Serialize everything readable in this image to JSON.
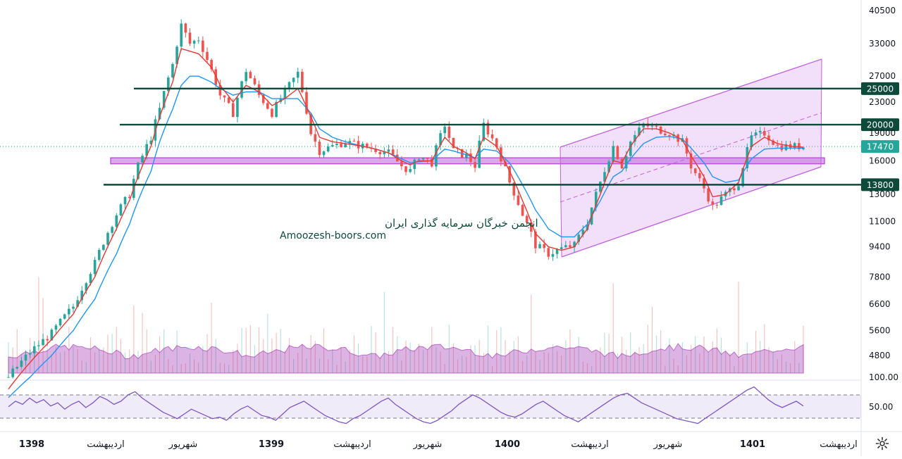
{
  "chart_data": {
    "type": "line",
    "chart_kind": "candlestick",
    "y_scale": "log",
    "ylim": [
      3900,
      43000
    ],
    "y_ticks": [
      "40500",
      "33000",
      "27000",
      "23000",
      "19000",
      "16000",
      "13000",
      "11000",
      "9400",
      "7800",
      "6600",
      "5600",
      "4800"
    ],
    "y_tick_values": [
      40500,
      33000,
      27000,
      23000,
      19000,
      16000,
      13000,
      11000,
      9400,
      7800,
      6600,
      5600,
      4800
    ],
    "x_labels": [
      {
        "text": "1398",
        "bold": true
      },
      {
        "text": "اردیبهشت",
        "bold": false
      },
      {
        "text": "شهریور",
        "bold": false
      },
      {
        "text": "1399",
        "bold": true
      },
      {
        "text": "اردیبهشت",
        "bold": false
      },
      {
        "text": "شهریور",
        "bold": false
      },
      {
        "text": "1400",
        "bold": true
      },
      {
        "text": "اردیبهشت",
        "bold": false
      },
      {
        "text": "شهریور",
        "bold": false
      },
      {
        "text": "1401",
        "bold": true
      },
      {
        "text": "اردیبهشت",
        "bold": false
      }
    ],
    "last_price": {
      "value": 17470,
      "label": "17470",
      "color": "#26a69a"
    },
    "levels": [
      {
        "value": 25000,
        "label": "25000"
      },
      {
        "value": 20000,
        "label": "20000"
      },
      {
        "value": 13800,
        "label": "13800"
      }
    ],
    "support_zone": {
      "from": 15700,
      "to": 16300
    },
    "price_path": [
      [
        0,
        4200
      ],
      [
        5,
        4900
      ],
      [
        10,
        5500
      ],
      [
        15,
        6500
      ],
      [
        20,
        8500
      ],
      [
        25,
        11500
      ],
      [
        28,
        13000
      ],
      [
        30,
        15500
      ],
      [
        33,
        18500
      ],
      [
        35,
        22000
      ],
      [
        38,
        29000
      ],
      [
        40,
        37000
      ],
      [
        42,
        33000
      ],
      [
        44,
        34000
      ],
      [
        47,
        28000
      ],
      [
        49,
        24000
      ],
      [
        52,
        21500
      ],
      [
        55,
        28000
      ],
      [
        58,
        24000
      ],
      [
        61,
        21500
      ],
      [
        64,
        24500
      ],
      [
        67,
        27500
      ],
      [
        70,
        19000
      ],
      [
        72,
        17000
      ],
      [
        75,
        17500
      ],
      [
        78,
        18000
      ],
      [
        82,
        17500
      ],
      [
        85,
        17200
      ],
      [
        88,
        16800
      ],
      [
        91,
        15500
      ],
      [
        93,
        15000
      ],
      [
        95,
        16500
      ],
      [
        98,
        15800
      ],
      [
        101,
        20000
      ],
      [
        103,
        17000
      ],
      [
        106,
        16500
      ],
      [
        108,
        15500
      ],
      [
        110,
        20000
      ],
      [
        113,
        17500
      ],
      [
        116,
        14000
      ],
      [
        119,
        11500
      ],
      [
        122,
        9500
      ],
      [
        125,
        9000
      ],
      [
        128,
        9300
      ],
      [
        131,
        9500
      ],
      [
        134,
        11000
      ],
      [
        137,
        14000
      ],
      [
        140,
        17500
      ],
      [
        142,
        15500
      ],
      [
        144,
        18000
      ],
      [
        147,
        20000
      ],
      [
        150,
        19500
      ],
      [
        153,
        19000
      ],
      [
        156,
        18000
      ],
      [
        158,
        15500
      ],
      [
        161,
        13500
      ],
      [
        163,
        12000
      ],
      [
        166,
        13000
      ],
      [
        169,
        14000
      ],
      [
        172,
        18500
      ],
      [
        175,
        19000
      ],
      [
        178,
        17500
      ],
      [
        181,
        17500
      ],
      [
        184,
        17470
      ]
    ],
    "ema_fast": [
      [
        0,
        3900
      ],
      [
        5,
        4600
      ],
      [
        10,
        5300
      ],
      [
        15,
        6200
      ],
      [
        20,
        7800
      ],
      [
        25,
        10500
      ],
      [
        28,
        12500
      ],
      [
        30,
        14500
      ],
      [
        33,
        17500
      ],
      [
        35,
        21000
      ],
      [
        38,
        26000
      ],
      [
        40,
        32000
      ],
      [
        42,
        31500
      ],
      [
        44,
        31000
      ],
      [
        47,
        28500
      ],
      [
        49,
        25500
      ],
      [
        52,
        23000
      ],
      [
        55,
        25500
      ],
      [
        58,
        24500
      ],
      [
        61,
        22500
      ],
      [
        64,
        23500
      ],
      [
        67,
        25000
      ],
      [
        70,
        21000
      ],
      [
        72,
        18500
      ],
      [
        75,
        18000
      ],
      [
        78,
        17800
      ],
      [
        82,
        17500
      ],
      [
        85,
        17200
      ],
      [
        88,
        16800
      ],
      [
        91,
        16000
      ],
      [
        93,
        15600
      ],
      [
        95,
        16000
      ],
      [
        98,
        16000
      ],
      [
        101,
        18500
      ],
      [
        103,
        17500
      ],
      [
        106,
        16800
      ],
      [
        108,
        16200
      ],
      [
        110,
        18500
      ],
      [
        113,
        17500
      ],
      [
        116,
        15000
      ],
      [
        119,
        12500
      ],
      [
        122,
        10200
      ],
      [
        125,
        9400
      ],
      [
        128,
        9200
      ],
      [
        131,
        9400
      ],
      [
        134,
        10500
      ],
      [
        137,
        13000
      ],
      [
        140,
        16000
      ],
      [
        142,
        15800
      ],
      [
        144,
        17500
      ],
      [
        147,
        19500
      ],
      [
        150,
        19500
      ],
      [
        153,
        19000
      ],
      [
        156,
        18200
      ],
      [
        158,
        16500
      ],
      [
        161,
        14500
      ],
      [
        163,
        12800
      ],
      [
        166,
        13000
      ],
      [
        169,
        14000
      ],
      [
        172,
        17500
      ],
      [
        175,
        18500
      ],
      [
        178,
        17800
      ],
      [
        181,
        17500
      ],
      [
        184,
        17400
      ]
    ],
    "ema_slow": [
      [
        0,
        3700
      ],
      [
        5,
        4200
      ],
      [
        10,
        4800
      ],
      [
        15,
        5600
      ],
      [
        20,
        6800
      ],
      [
        25,
        9000
      ],
      [
        28,
        10800
      ],
      [
        30,
        12500
      ],
      [
        33,
        15000
      ],
      [
        35,
        18000
      ],
      [
        38,
        22000
      ],
      [
        40,
        25500
      ],
      [
        42,
        27000
      ],
      [
        44,
        27000
      ],
      [
        47,
        26000
      ],
      [
        49,
        25000
      ],
      [
        52,
        24000
      ],
      [
        55,
        24500
      ],
      [
        58,
        24500
      ],
      [
        61,
        23500
      ],
      [
        64,
        23500
      ],
      [
        67,
        23500
      ],
      [
        70,
        21500
      ],
      [
        72,
        19500
      ],
      [
        75,
        18500
      ],
      [
        78,
        18000
      ],
      [
        82,
        17500
      ],
      [
        85,
        17200
      ],
      [
        88,
        16800
      ],
      [
        91,
        16200
      ],
      [
        93,
        15800
      ],
      [
        95,
        15900
      ],
      [
        98,
        16000
      ],
      [
        101,
        17200
      ],
      [
        103,
        17000
      ],
      [
        106,
        16600
      ],
      [
        108,
        16300
      ],
      [
        110,
        17200
      ],
      [
        113,
        17000
      ],
      [
        116,
        15800
      ],
      [
        119,
        13800
      ],
      [
        122,
        11800
      ],
      [
        125,
        10500
      ],
      [
        128,
        10000
      ],
      [
        131,
        10000
      ],
      [
        134,
        10800
      ],
      [
        137,
        12500
      ],
      [
        140,
        14500
      ],
      [
        142,
        15000
      ],
      [
        144,
        16200
      ],
      [
        147,
        17800
      ],
      [
        150,
        18500
      ],
      [
        153,
        18600
      ],
      [
        156,
        18300
      ],
      [
        158,
        17300
      ],
      [
        161,
        15800
      ],
      [
        163,
        14500
      ],
      [
        166,
        14000
      ],
      [
        169,
        14200
      ],
      [
        172,
        16200
      ],
      [
        175,
        17200
      ],
      [
        178,
        17300
      ],
      [
        181,
        17300
      ],
      [
        184,
        17300
      ]
    ],
    "channel": {
      "lower": [
        [
          797,
          365
        ],
        [
          1165,
          237
        ]
      ],
      "upper": [
        [
          795,
          209
        ],
        [
          1166,
          84
        ]
      ],
      "mid": [
        [
          795,
          287
        ],
        [
          1166,
          160
        ]
      ]
    },
    "rsi": {
      "levels": [
        "100.00",
        "50.00"
      ],
      "values": [
        55,
        62,
        58,
        66,
        60,
        64,
        56,
        60,
        52,
        58,
        62,
        54,
        60,
        68,
        64,
        58,
        62,
        70,
        74,
        66,
        60,
        54,
        48,
        44,
        40,
        46,
        52,
        48,
        44,
        40,
        42,
        38,
        46,
        52,
        56,
        50,
        44,
        42,
        38,
        46,
        54,
        58,
        62,
        56,
        50,
        44,
        40,
        36,
        34,
        40,
        44,
        50,
        56,
        62,
        66,
        58,
        52,
        46,
        40,
        36,
        34,
        38,
        44,
        50,
        58,
        64,
        70,
        66,
        60,
        54,
        48,
        44,
        42,
        46,
        52,
        58,
        62,
        56,
        50,
        44,
        40,
        36,
        42,
        48,
        54,
        60,
        66,
        70,
        72,
        66,
        60,
        56,
        52,
        48,
        44,
        40,
        38,
        36,
        34,
        40,
        46,
        52,
        58,
        64,
        70,
        76,
        80,
        72,
        64,
        58,
        54,
        58,
        62,
        56
      ]
    },
    "colors": {
      "up": "#26a69a",
      "down": "#ef5350",
      "ema_fast": "#e53935",
      "ema_slow": "#2196f3",
      "levels": "#0e4a3a",
      "zone": "#b040d0",
      "channel": "#c060e0",
      "rsi": "#7e57c2",
      "volume_area": "#9c27b0"
    }
  },
  "watermark": {
    "line1": "انجمن خبرگان سرمایه گذاری ایران",
    "line2": "Amoozesh-boors.com"
  },
  "settings": {
    "icon": "gear-icon"
  }
}
